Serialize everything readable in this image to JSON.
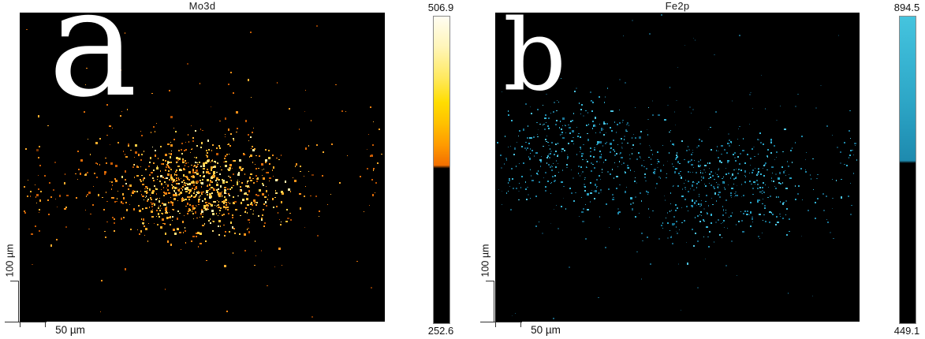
{
  "chart_data": [
    {
      "type": "scatter",
      "panel_label": "a",
      "title": "Mo3d",
      "background": "#000000",
      "scale_bar_x": "50 µm",
      "scale_bar_y": "100 µm",
      "colorbar": {
        "label_max": "506.9",
        "label_min": "252.6",
        "gradient_stops": [
          [
            "#fffdf2",
            0
          ],
          [
            "#fff5b8",
            0.1
          ],
          [
            "#ffe95e",
            0.2
          ],
          [
            "#ffdd00",
            0.28
          ],
          [
            "#ffc000",
            0.35
          ],
          [
            "#ff9a00",
            0.42
          ],
          [
            "#f26f00",
            0.485
          ]
        ],
        "threshold_pos": 0.495,
        "below_color": "#000000"
      },
      "seed": 20240601,
      "dot_palettes": {
        "bright": [
          "#ffd24d",
          "#ffe07a",
          "#ffbe37",
          "#ffaa26",
          "#ff9418",
          "#fff2ad",
          "#ffcc44"
        ],
        "mid": [
          "#e06c08",
          "#f08010",
          "#ff9018",
          "#c85a04",
          "#ffae2e",
          "#b65002",
          "#f49a20"
        ],
        "dark": [
          "#8a3a00",
          "#a04402",
          "#c05a06",
          "#d96c0a",
          "#7a3300"
        ]
      },
      "clusters": [
        {
          "cx": 0.5,
          "cy": 0.555,
          "sx": 0.35,
          "sy": 0.26,
          "count": 500,
          "palette": "bright",
          "min_size": 1.2,
          "max_size": 3.0
        },
        {
          "cx": 0.44,
          "cy": 0.56,
          "sx": 0.55,
          "sy": 0.36,
          "count": 360,
          "palette": "mid",
          "min_size": 1.1,
          "max_size": 2.7
        },
        {
          "cx": 0.5,
          "cy": 0.5,
          "sx": 0.88,
          "sy": 0.56,
          "count": 130,
          "palette": "mid",
          "min_size": 1.0,
          "max_size": 2.4
        },
        {
          "uniform": true,
          "count": 45,
          "palette": "dark",
          "min_size": 1.0,
          "max_size": 2.2
        },
        {
          "cx": 0.035,
          "cy": 0.62,
          "sx": 0.07,
          "sy": 0.3,
          "count": 22,
          "palette": "mid",
          "min_size": 1.2,
          "max_size": 2.6
        },
        {
          "cx": 0.965,
          "cy": 0.5,
          "sx": 0.06,
          "sy": 0.24,
          "count": 16,
          "palette": "mid",
          "min_size": 1.2,
          "max_size": 2.6
        }
      ]
    },
    {
      "type": "scatter",
      "panel_label": "b",
      "title": "Fe2p",
      "background": "#000000",
      "scale_bar_x": "50 µm",
      "scale_bar_y": "100 µm",
      "colorbar": {
        "label_max": "894.5",
        "label_min": "449.1",
        "gradient_stops": [
          [
            "#45c4de",
            0
          ],
          [
            "#38b5d3",
            0.14
          ],
          [
            "#2ea7c7",
            0.27
          ],
          [
            "#2497ba",
            0.38
          ],
          [
            "#1e8aae",
            0.47
          ]
        ],
        "threshold_pos": 0.478,
        "below_color": "#000000"
      },
      "seed": 777001,
      "dot_palettes": {
        "mid": [
          "#1b7494",
          "#2088aa",
          "#27a0c2",
          "#35b5d6",
          "#17607c",
          "#4cc3e0",
          "#15718f"
        ],
        "dim": [
          "#0c3242",
          "#0f4054",
          "#135066",
          "#17607a",
          "#0a2a38"
        ]
      },
      "clusters": [
        {
          "cx": 0.22,
          "cy": 0.46,
          "sx": 0.4,
          "sy": 0.32,
          "count": 400,
          "palette": "mid",
          "min_size": 1.0,
          "max_size": 2.4
        },
        {
          "cx": 0.64,
          "cy": 0.56,
          "sx": 0.44,
          "sy": 0.3,
          "count": 440,
          "palette": "mid",
          "min_size": 1.0,
          "max_size": 2.4
        },
        {
          "cx": 0.45,
          "cy": 0.5,
          "sx": 0.9,
          "sy": 0.52,
          "count": 140,
          "palette": "dim",
          "min_size": 1.0,
          "max_size": 2.2
        },
        {
          "uniform": true,
          "count": 55,
          "palette": "dim",
          "min_size": 1.0,
          "max_size": 2.0
        },
        {
          "cx": 0.975,
          "cy": 0.46,
          "sx": 0.05,
          "sy": 0.26,
          "count": 18,
          "palette": "mid",
          "min_size": 1.0,
          "max_size": 2.4
        }
      ]
    }
  ]
}
